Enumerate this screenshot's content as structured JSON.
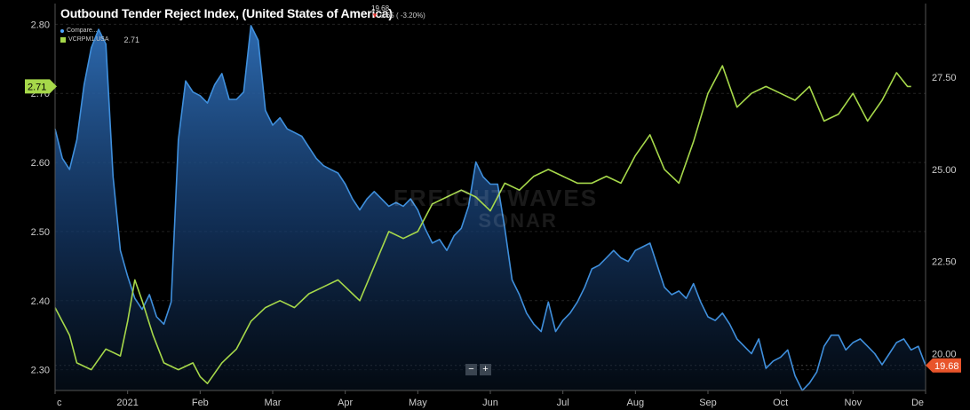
{
  "title": "Outbound Tender Reject Index, (United States of America)",
  "title_value": "19.68",
  "title_change": "0.65 ( -3.20%)",
  "legend": [
    {
      "name": "Compare...",
      "color": "#4da6ff",
      "value": ""
    },
    {
      "name": "VCRPM1.USA",
      "color": "#a6d84a",
      "value": "2.71"
    }
  ],
  "watermark": [
    "FREIGHTWAVES",
    "SONAR"
  ],
  "zoom": {
    "minus": "−",
    "plus": "+"
  },
  "chart_data": {
    "type": "area",
    "title": "Outbound Tender Reject Index, (United States of America)",
    "x_ticks": [
      "c",
      "2021",
      "Feb",
      "Mar",
      "Apr",
      "May",
      "Jun",
      "Jul",
      "Aug",
      "Sep",
      "Oct",
      "Nov",
      "De"
    ],
    "left_axis": {
      "ticks": [
        "2.80",
        "2.70",
        "2.60",
        "2.50",
        "2.40",
        "2.30"
      ],
      "range": [
        2.27,
        2.83
      ]
    },
    "right_axis": {
      "ticks": [
        "27.50",
        "25.00",
        "22.50",
        "20.00"
      ],
      "range": [
        19.0,
        29.5
      ]
    },
    "x_range": [
      0,
      12
    ],
    "flags": [
      {
        "axis": "left",
        "label": "2.71",
        "value": 2.71,
        "color": "#a6d84a"
      },
      {
        "axis": "right",
        "label": "19.68",
        "value": 19.68,
        "color": "#e8542a"
      }
    ],
    "series": [
      {
        "name": "Outbound Tender Reject Index",
        "axis": "right",
        "color": "#3f8fdc",
        "x": [
          0,
          0.1,
          0.2,
          0.3,
          0.4,
          0.5,
          0.6,
          0.7,
          0.8,
          0.9,
          1.0,
          1.1,
          1.2,
          1.3,
          1.4,
          1.5,
          1.6,
          1.7,
          1.8,
          1.9,
          2.0,
          2.1,
          2.2,
          2.3,
          2.4,
          2.5,
          2.6,
          2.7,
          2.8,
          2.9,
          3.0,
          3.1,
          3.2,
          3.3,
          3.4,
          3.5,
          3.6,
          3.7,
          3.8,
          3.9,
          4.0,
          4.1,
          4.2,
          4.3,
          4.4,
          4.5,
          4.6,
          4.7,
          4.8,
          4.9,
          5.0,
          5.1,
          5.2,
          5.3,
          5.4,
          5.5,
          5.6,
          5.7,
          5.8,
          5.9,
          6.0,
          6.1,
          6.2,
          6.3,
          6.4,
          6.5,
          6.6,
          6.7,
          6.8,
          6.9,
          7.0,
          7.1,
          7.2,
          7.3,
          7.4,
          7.5,
          7.6,
          7.7,
          7.8,
          7.9,
          8.0,
          8.1,
          8.2,
          8.3,
          8.4,
          8.5,
          8.6,
          8.7,
          8.8,
          8.9,
          9.0,
          9.1,
          9.2,
          9.3,
          9.4,
          9.5,
          9.6,
          9.7,
          9.8,
          9.9,
          10.0,
          10.1,
          10.2,
          10.3,
          10.4,
          10.5,
          10.6,
          10.7,
          10.8,
          10.9,
          11.0,
          11.1,
          11.2,
          11.3,
          11.4,
          11.5,
          11.6,
          11.7,
          11.8,
          11.9,
          12.0
        ],
        "values": [
          26.1,
          25.3,
          25.0,
          25.8,
          27.3,
          28.3,
          28.8,
          28.4,
          24.8,
          22.8,
          22.1,
          21.5,
          21.2,
          21.6,
          21.0,
          20.8,
          21.4,
          25.8,
          27.4,
          27.1,
          27.0,
          26.8,
          27.3,
          27.6,
          26.9,
          26.9,
          27.1,
          28.9,
          28.5,
          26.6,
          26.2,
          26.4,
          26.1,
          26.0,
          25.9,
          25.6,
          25.3,
          25.1,
          25.0,
          24.9,
          24.6,
          24.2,
          23.9,
          24.2,
          24.4,
          24.2,
          24.0,
          24.1,
          24.0,
          24.2,
          23.9,
          23.4,
          23.0,
          23.1,
          22.8,
          23.2,
          23.4,
          24.0,
          25.2,
          24.8,
          24.6,
          24.6,
          23.4,
          22.0,
          21.6,
          21.1,
          20.8,
          20.6,
          21.4,
          20.6,
          20.9,
          21.1,
          21.4,
          21.8,
          22.3,
          22.4,
          22.6,
          22.8,
          22.6,
          22.5,
          22.8,
          22.9,
          23.0,
          22.4,
          21.8,
          21.6,
          21.7,
          21.5,
          21.9,
          21.4,
          21.0,
          20.9,
          21.1,
          20.8,
          20.4,
          20.2,
          20.0,
          20.4,
          19.6,
          19.8,
          19.9,
          20.1,
          19.4,
          19.0,
          19.2,
          19.5,
          20.2,
          20.5,
          20.5,
          20.1,
          20.3,
          20.4,
          20.2,
          20.0,
          19.7,
          20.0,
          20.3,
          20.4,
          20.1,
          20.2,
          19.68
        ]
      },
      {
        "name": "VCRPM1.USA",
        "axis": "left",
        "color": "#a6d84a",
        "x": [
          0,
          0.2,
          0.3,
          0.5,
          0.7,
          0.9,
          1.0,
          1.1,
          1.2,
          1.35,
          1.5,
          1.7,
          1.9,
          2.0,
          2.1,
          2.3,
          2.5,
          2.7,
          2.9,
          3.1,
          3.3,
          3.5,
          3.7,
          3.9,
          4.0,
          4.1,
          4.2,
          4.4,
          4.6,
          4.8,
          5.0,
          5.2,
          5.4,
          5.6,
          5.8,
          6.0,
          6.2,
          6.4,
          6.6,
          6.8,
          7.0,
          7.2,
          7.4,
          7.6,
          7.8,
          8.0,
          8.2,
          8.4,
          8.6,
          8.8,
          9.0,
          9.2,
          9.4,
          9.6,
          9.8,
          10.0,
          10.2,
          10.4,
          10.6,
          10.8,
          11.0,
          11.2,
          11.4,
          11.6,
          11.75,
          11.8
        ],
        "values": [
          2.39,
          2.35,
          2.31,
          2.3,
          2.33,
          2.32,
          2.37,
          2.43,
          2.4,
          2.35,
          2.31,
          2.3,
          2.31,
          2.29,
          2.28,
          2.31,
          2.33,
          2.37,
          2.39,
          2.4,
          2.39,
          2.41,
          2.42,
          2.43,
          2.42,
          2.41,
          2.4,
          2.45,
          2.5,
          2.49,
          2.5,
          2.54,
          2.55,
          2.56,
          2.55,
          2.53,
          2.57,
          2.56,
          2.58,
          2.59,
          2.58,
          2.57,
          2.57,
          2.58,
          2.57,
          2.61,
          2.64,
          2.59,
          2.57,
          2.63,
          2.7,
          2.74,
          2.68,
          2.7,
          2.71,
          2.7,
          2.69,
          2.71,
          2.66,
          2.67,
          2.7,
          2.66,
          2.69,
          2.73,
          2.71,
          2.71
        ]
      }
    ]
  }
}
